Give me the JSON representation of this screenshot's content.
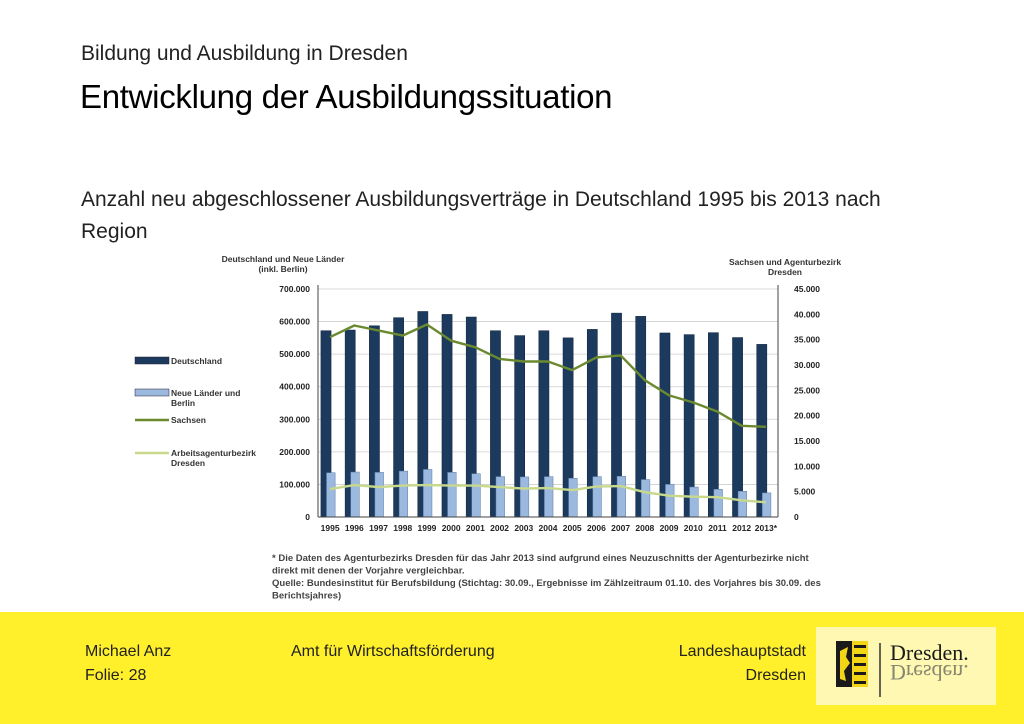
{
  "header": {
    "supertitle": "Bildung und Ausbildung in Dresden",
    "title": "Entwicklung der Ausbildungssituation",
    "subtitle": "Anzahl neu abgeschlossener Ausbildungsverträge in Deutschland 1995 bis 2013 nach Region"
  },
  "chart_data": {
    "type": "bar",
    "left_axis_title": [
      "Deutschland und Neue Länder",
      "(inkl. Berlin)"
    ],
    "right_axis_title": [
      "Sachsen und Agenturbezirk",
      "Dresden"
    ],
    "categories": [
      "1995",
      "1996",
      "1997",
      "1998",
      "1999",
      "2000",
      "2001",
      "2002",
      "2003",
      "2004",
      "2005",
      "2006",
      "2007",
      "2008",
      "2009",
      "2010",
      "2011",
      "2012",
      "2013*"
    ],
    "left_ylim": [
      0,
      700000
    ],
    "right_ylim": [
      0,
      45000
    ],
    "left_ticks": [
      "0",
      "100.000",
      "200.000",
      "300.000",
      "400.000",
      "500.000",
      "600.000",
      "700.000"
    ],
    "right_ticks": [
      "0",
      "5.000",
      "10.000",
      "15.000",
      "20.000",
      "25.000",
      "30.000",
      "35.000",
      "40.000",
      "45.000"
    ],
    "grid": true,
    "legend_position": "left",
    "series": [
      {
        "name": "Deutschland",
        "kind": "bar",
        "axis": "left",
        "color": "#1c3a5e",
        "values": [
          572000,
          574000,
          587000,
          612000,
          631000,
          622000,
          614000,
          572000,
          557000,
          572000,
          550000,
          576000,
          626000,
          616000,
          565000,
          560000,
          566000,
          551000,
          530000
        ]
      },
      {
        "name": "Neue Länder und Berlin",
        "kind": "bar",
        "axis": "left",
        "color": "#9bb8de",
        "values": [
          136000,
          138000,
          137000,
          141000,
          146000,
          137000,
          133000,
          124000,
          123000,
          124000,
          119000,
          124000,
          125000,
          115000,
          100000,
          92000,
          85000,
          79000,
          74000
        ]
      },
      {
        "name": "Sachsen",
        "kind": "line",
        "axis": "right",
        "color": "#6b8a2f",
        "values": [
          35500,
          37800,
          36800,
          35800,
          38000,
          34800,
          33500,
          31200,
          30700,
          30700,
          29000,
          31500,
          31900,
          27000,
          24000,
          22600,
          20800,
          18000,
          17800
        ]
      },
      {
        "name": "Arbeitsagenturbezirk Dresden",
        "kind": "line",
        "axis": "right",
        "color": "#c8d98c",
        "values": [
          5500,
          6300,
          5900,
          6200,
          6300,
          6200,
          6200,
          5900,
          5600,
          5700,
          5300,
          6000,
          6100,
          4900,
          4200,
          4000,
          3900,
          3300,
          2900
        ]
      }
    ],
    "notes": [
      "* Die Daten des Agenturbezirks Dresden für das Jahr 2013 sind aufgrund eines Neuzuschnitts der Agenturbezirke nicht",
      "direkt mit denen der Vorjahre vergleichbar.",
      "Quelle: Bundesinstitut für Berufsbildung (Stichtag: 30.09., Ergebnisse im Zählzeitraum 01.10. des Vorjahres bis 30.09. des",
      "Berichtsjahres)"
    ]
  },
  "footer": {
    "author": "Michael Anz",
    "slide": "Folie: 28",
    "department": "Amt für Wirtschaftsförderung",
    "city_line1": "Landeshauptstadt",
    "city_line2": "Dresden",
    "logo_text": "Dresden."
  },
  "colors": {
    "footer_bg": "#fff02b",
    "logo_bg": "#fff8b3"
  }
}
